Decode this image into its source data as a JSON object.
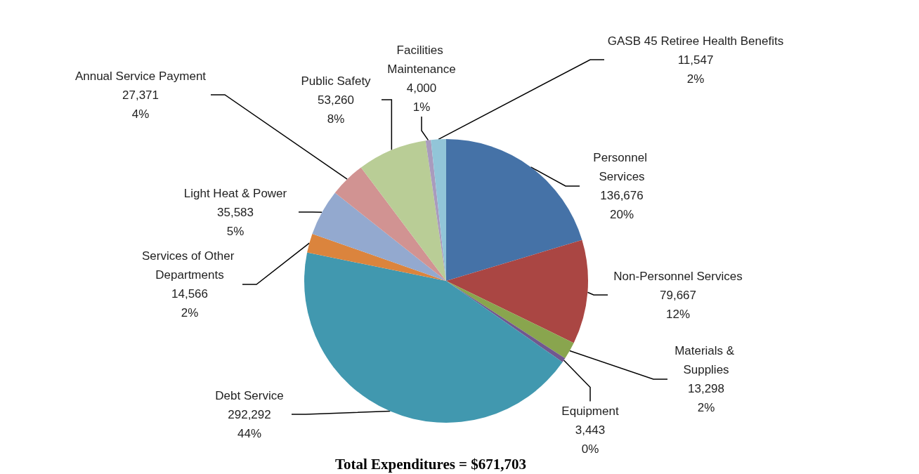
{
  "chart_data": {
    "type": "pie",
    "title": "Total Expenditures = $671,703",
    "categories": [
      "Personnel Services",
      "Non-Personnel Services",
      "Materials & Supplies",
      "Equipment",
      "Debt Service",
      "Services of Other Departments",
      "Light Heat & Power",
      "Annual Service Payment",
      "Public Safety",
      "Facilities Maintenance",
      "GASB 45 Retiree Health Benefits"
    ],
    "values": [
      136676,
      79667,
      13298,
      3443,
      292292,
      14566,
      35583,
      27371,
      53260,
      4000,
      11547
    ],
    "value_labels": [
      "136,676\n20%",
      "79,667\n12%",
      "13,298\n2%",
      "3,443\n0%",
      "292,292\n44%",
      "14,566\n2%",
      "35,583\n5%",
      "27,371\n4%",
      "53,260\n8%",
      "4,000\n1%",
      "11,547\n2%"
    ],
    "colors": [
      "#4572a7",
      "#aa4643",
      "#89a54e",
      "#71588f",
      "#4198af",
      "#db843d",
      "#93a9cf",
      "#d19392",
      "#b9cd96",
      "#a99bbd",
      "#92c5d8"
    ]
  }
}
